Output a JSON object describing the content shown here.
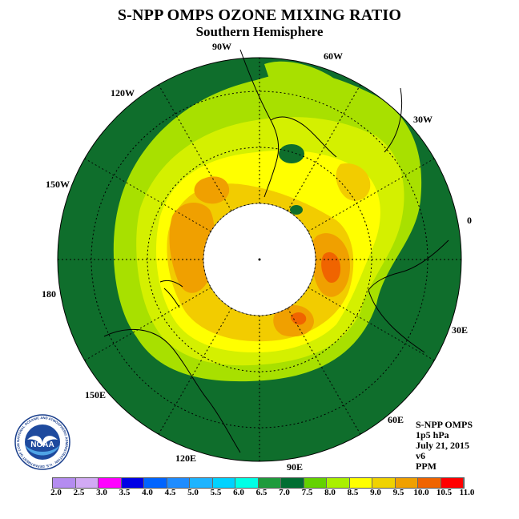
{
  "header": {
    "title": "S-NPP OMPS OZONE MIXING RATIO",
    "subtitle": "Southern Hemisphere"
  },
  "longitude_labels": [
    "90W",
    "60W",
    "30W",
    "0",
    "30E",
    "60E",
    "90E",
    "120E",
    "150E",
    "180",
    "150W",
    "120W"
  ],
  "info": {
    "instrument": "S-NPP OMPS",
    "level": "1p5 hPa",
    "date": "July 21, 2015",
    "version": "v6",
    "units": "PPM"
  },
  "logo": {
    "text": "NOAA",
    "ring_text": "NATIONAL OCEANIC AND ATMOSPHERIC ADMINISTRATION · U.S. DEPARTMENT OF COMMERCE"
  },
  "colorbar": {
    "ticks": [
      "2.0",
      "2.5",
      "3.0",
      "3.5",
      "4.0",
      "4.5",
      "5.0",
      "5.5",
      "6.0",
      "6.5",
      "7.0",
      "7.5",
      "8.0",
      "8.5",
      "9.0",
      "9.5",
      "10.0",
      "10.5",
      "11.0"
    ],
    "colors": [
      "#b48cf0",
      "#d2aaf5",
      "#ff00ff",
      "#0000e6",
      "#0064ff",
      "#1e8cff",
      "#1eb4ff",
      "#00d2ff",
      "#00ffe6",
      "#1e9b3c",
      "#006e32",
      "#64d200",
      "#aaf000",
      "#ffff00",
      "#f0d200",
      "#f0a000",
      "#f06400",
      "#ff0000",
      "#a0522d"
    ]
  },
  "map_colors": {
    "c65": "#007a33",
    "c70": "#0f6e2c",
    "c75": "#a8e000",
    "c80": "#d4f000",
    "c85": "#ffff00",
    "c90": "#f2cc00",
    "c95": "#f0a000",
    "c100": "#f06400",
    "polar_night": "#ffffff"
  }
}
